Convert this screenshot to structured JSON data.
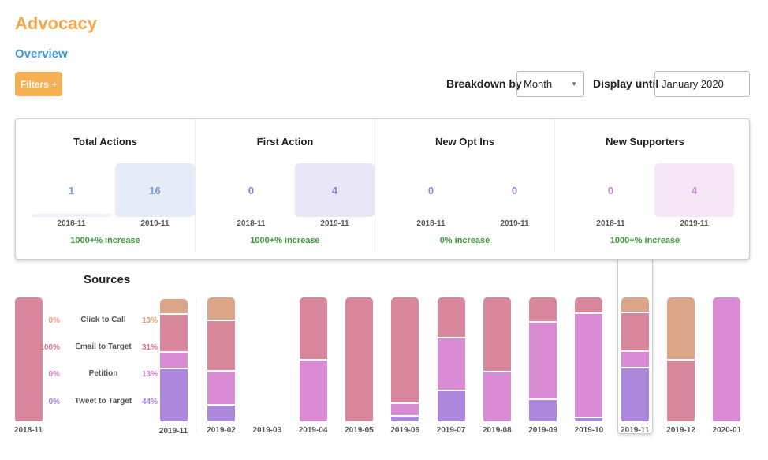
{
  "title": "Advocacy",
  "subtitle": "Overview",
  "filters_label": "Filters +",
  "breakdown": {
    "label": "Breakdown by",
    "value": "Month"
  },
  "display_until": {
    "label": "Display until",
    "value": "January 2020"
  },
  "kpis": [
    {
      "title": "Total Actions",
      "prev": {
        "date": "2018-11",
        "value": "1"
      },
      "curr": {
        "date": "2019-11",
        "value": "16"
      },
      "change": "1000+% increase",
      "color": "#7b9be0",
      "fill": "#e6ecf7"
    },
    {
      "title": "First Action",
      "prev": {
        "date": "2018-11",
        "value": "0"
      },
      "curr": {
        "date": "2019-11",
        "value": "4"
      },
      "change": "1000+% increase",
      "color": "#8c7ce0",
      "fill": "#e8e6f7"
    },
    {
      "title": "New Opt Ins",
      "prev": {
        "date": "2018-11",
        "value": "0"
      },
      "curr": {
        "date": "2019-11",
        "value": "0"
      },
      "change": "0% increase",
      "color": "#a07ce0",
      "fill": ""
    },
    {
      "title": "New Supporters",
      "prev": {
        "date": "2018-11",
        "value": "0"
      },
      "curr": {
        "date": "2019-11",
        "value": "4"
      },
      "change": "1000+% increase",
      "color": "#d080d8",
      "fill": "#f7e6f5"
    }
  ],
  "sources": {
    "title": "Sources",
    "categories": [
      "Click to Call",
      "Email to Target",
      "Petition",
      "Tweet to Target"
    ],
    "colors": [
      "#dba58a",
      "#d8879d",
      "#d98bd4",
      "#ad87db"
    ],
    "text_colors": [
      "#e59a70",
      "#df6f8f",
      "#d77cd4",
      "#a77ce0"
    ],
    "compare": {
      "prev": {
        "date": "2018-11",
        "percents": [
          "0%",
          "100%",
          "0%",
          "0%"
        ]
      },
      "curr": {
        "date": "2019-11",
        "percents": [
          "13%",
          "31%",
          "13%",
          "44%"
        ]
      }
    },
    "months": [
      {
        "month": "2019-02",
        "values": [
          19,
          40,
          27,
          14
        ]
      },
      {
        "month": "2019-03",
        "values": [
          0,
          0,
          0,
          0
        ]
      },
      {
        "month": "2019-04",
        "values": [
          0,
          50,
          50,
          0
        ]
      },
      {
        "month": "2019-05",
        "values": [
          0,
          100,
          0,
          0
        ]
      },
      {
        "month": "2019-06",
        "values": [
          0,
          85,
          10,
          5
        ]
      },
      {
        "month": "2019-07",
        "values": [
          0,
          33,
          42,
          25
        ]
      },
      {
        "month": "2019-08",
        "values": [
          0,
          60,
          40,
          0
        ]
      },
      {
        "month": "2019-09",
        "values": [
          0,
          20,
          62,
          18
        ]
      },
      {
        "month": "2019-10",
        "values": [
          0,
          13,
          83,
          4
        ]
      },
      {
        "month": "2019-11",
        "values": [
          13,
          31,
          13,
          44
        ]
      },
      {
        "month": "2019-12",
        "values": [
          50,
          50,
          0,
          0
        ]
      },
      {
        "month": "2020-01",
        "values": [
          0,
          0,
          100,
          0
        ]
      }
    ],
    "highlighted_month": "2019-11"
  }
}
